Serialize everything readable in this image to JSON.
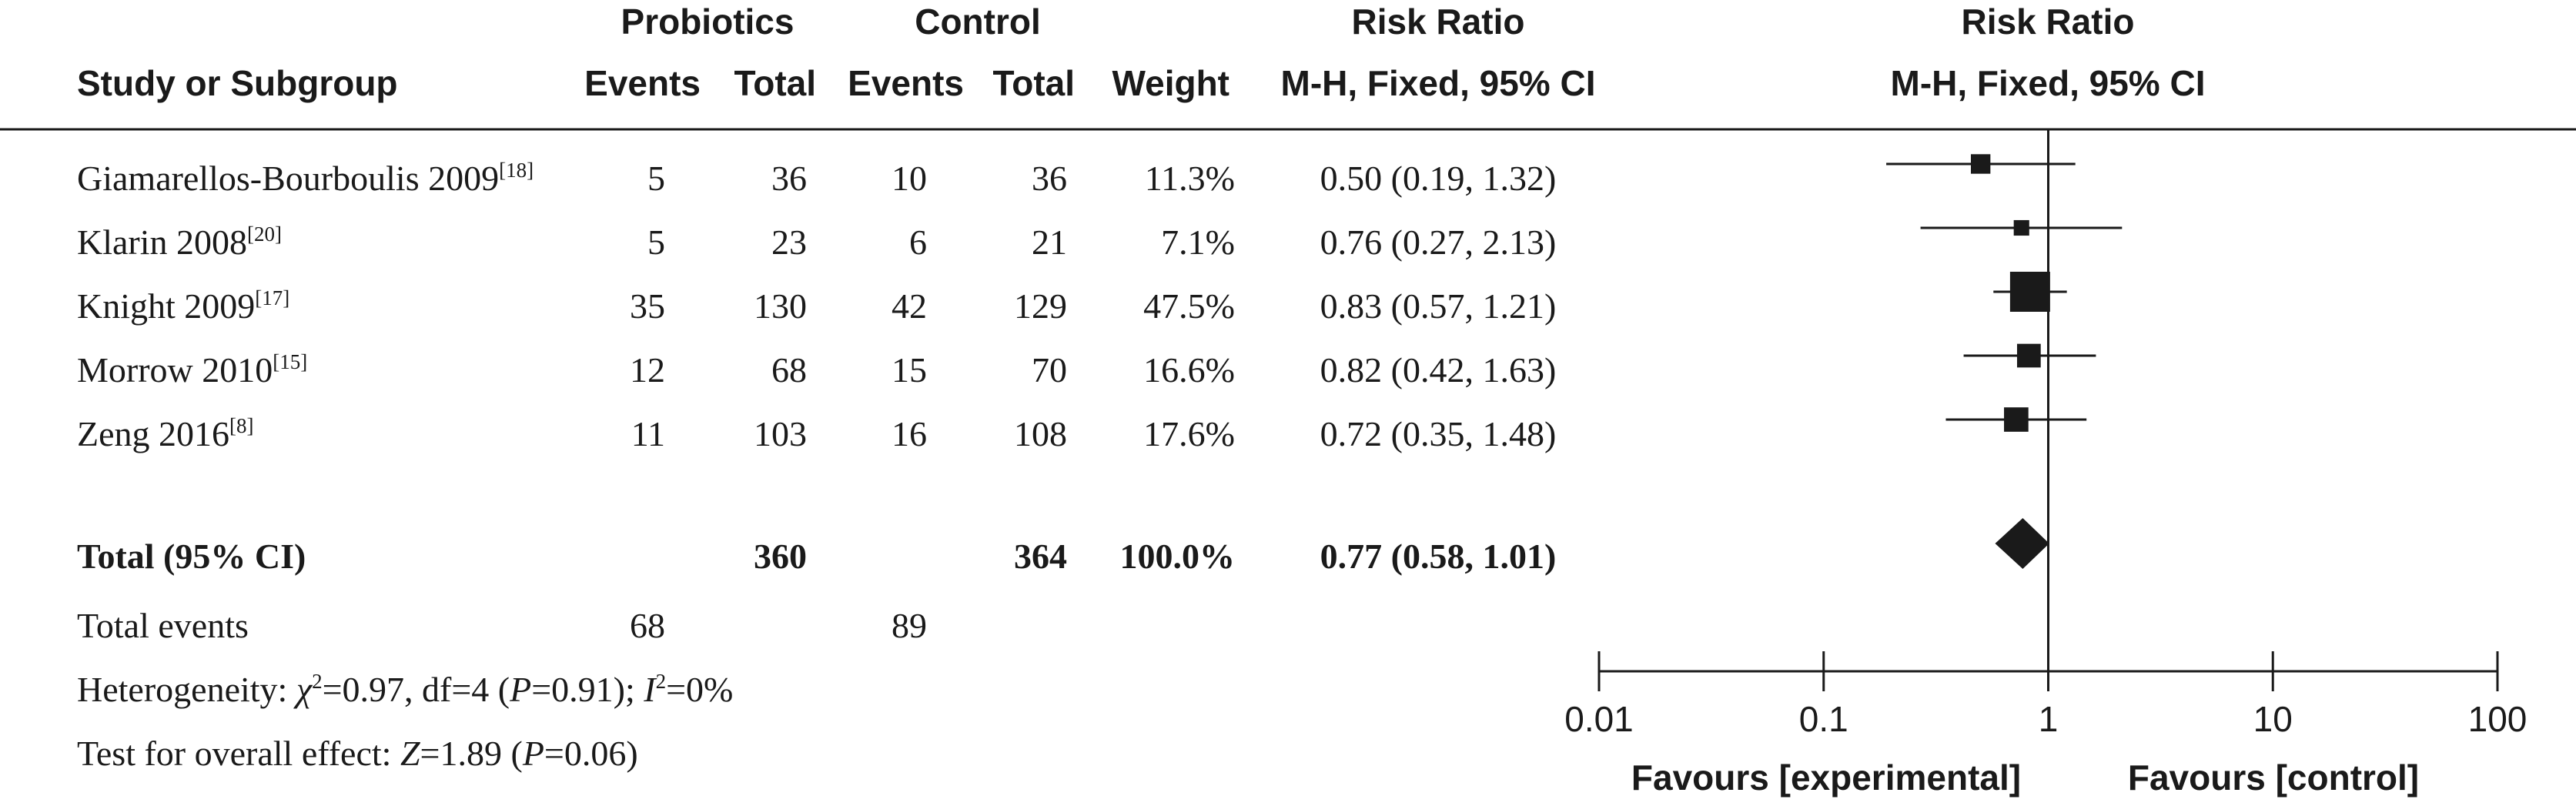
{
  "header": {
    "group1": "Probiotics",
    "group2": "Control",
    "rr_title": "Risk Ratio",
    "rr_method": "M-H, Fixed, 95% CI",
    "plot_title": "Risk Ratio",
    "plot_method": "M-H, Fixed, 95% CI",
    "study_col": "Study or Subgroup",
    "events1": "Events",
    "total1": "Total",
    "events2": "Events",
    "total2": "Total",
    "weight": "Weight"
  },
  "rows": [
    {
      "study": "Giamarellos-Bourboulis 2009",
      "ref": "[18]",
      "e1": "5",
      "t1": "36",
      "e2": "10",
      "t2": "36",
      "weight": "11.3%",
      "ci_text": "0.50 (0.19, 1.32)"
    },
    {
      "study": "Klarin 2008",
      "ref": "[20]",
      "e1": "5",
      "t1": "23",
      "e2": "6",
      "t2": "21",
      "weight": "7.1%",
      "ci_text": "0.76 (0.27, 2.13)"
    },
    {
      "study": "Knight 2009",
      "ref": "[17]",
      "e1": "35",
      "t1": "130",
      "e2": "42",
      "t2": "129",
      "weight": "47.5%",
      "ci_text": "0.83 (0.57, 1.21)"
    },
    {
      "study": "Morrow 2010",
      "ref": "[15]",
      "e1": "12",
      "t1": "68",
      "e2": "15",
      "t2": "70",
      "weight": "16.6%",
      "ci_text": "0.82 (0.42, 1.63)"
    },
    {
      "study": "Zeng 2016",
      "ref": "[8]",
      "e1": "11",
      "t1": "103",
      "e2": "16",
      "t2": "108",
      "weight": "17.6%",
      "ci_text": "0.72 (0.35, 1.48)"
    }
  ],
  "total": {
    "label": "Total (95% CI)",
    "t1": "360",
    "t2": "364",
    "weight": "100.0%",
    "ci_text": "0.77 (0.58, 1.01)"
  },
  "total_events": {
    "label": "Total events",
    "e1": "68",
    "e2": "89"
  },
  "heterogeneity": {
    "prefix": "Heterogeneity: ",
    "chi": "χ",
    "chi_sup": "2",
    "chi_val": "=0.97, df=4 (",
    "p": "P",
    "p_val": "=0.91); ",
    "i": "I",
    "i_sup": "2",
    "i_val": "=0%"
  },
  "overall": {
    "prefix": "Test for overall effect: ",
    "z": "Z",
    "z_val": "=1.89 (",
    "p": "P",
    "p_val": "=0.06)"
  },
  "axis_ticks": [
    "0.01",
    "0.1",
    "1",
    "10",
    "100"
  ],
  "favours": {
    "left": "Favours [experimental]",
    "right": "Favours [control]"
  },
  "chart_data": {
    "type": "scatter",
    "title": "Risk Ratio",
    "xscale": "log",
    "xlim": [
      0.01,
      100
    ],
    "reference_line": 1,
    "series": [
      {
        "study": "Giamarellos-Bourboulis 2009",
        "estimate": 0.5,
        "lower": 0.19,
        "upper": 1.32,
        "weight": 11.3
      },
      {
        "study": "Klarin 2008",
        "estimate": 0.76,
        "lower": 0.27,
        "upper": 2.13,
        "weight": 7.1
      },
      {
        "study": "Knight 2009",
        "estimate": 0.83,
        "lower": 0.57,
        "upper": 1.21,
        "weight": 47.5
      },
      {
        "study": "Morrow 2010",
        "estimate": 0.82,
        "lower": 0.42,
        "upper": 1.63,
        "weight": 16.6
      },
      {
        "study": "Zeng 2016",
        "estimate": 0.72,
        "lower": 0.35,
        "upper": 1.48,
        "weight": 17.6
      }
    ],
    "pooled": {
      "estimate": 0.77,
      "lower": 0.58,
      "upper": 1.01,
      "weight": 100.0
    }
  }
}
